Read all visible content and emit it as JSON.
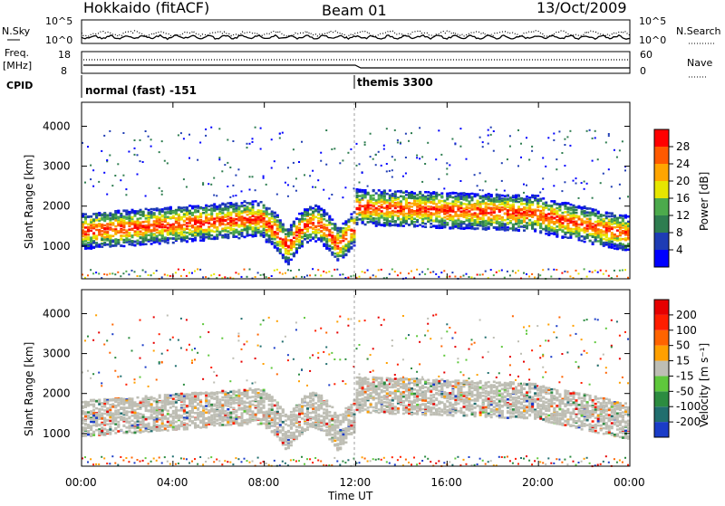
{
  "header": {
    "left_title": "Hokkaido (fitACF)",
    "center_title": "Beam 01",
    "right_title": "13/Oct/2009"
  },
  "top_panels": {
    "nsky_label": "N.Sky",
    "nsearch_label": "N.Search",
    "nsky_ticks": [
      "10^5",
      "10^0"
    ],
    "nsearch_ticks": [
      "10^5",
      "10^0"
    ],
    "freq_label_1": "Freq.",
    "freq_label_2": "[MHz]",
    "freq_ticks": [
      "18",
      "8"
    ],
    "nave_label": "Nave",
    "nave_ticks": [
      "60",
      "0"
    ],
    "cpid_label": "CPID",
    "cpid_segments": [
      "normal (fast) -151",
      "themis 3300"
    ]
  },
  "power_panel": {
    "ylabel": "Slant Range [km]",
    "colorbar_label": "Power [dB]",
    "colorbar_ticks": [
      "28",
      "24",
      "20",
      "16",
      "12",
      "8",
      "4"
    ],
    "colors": [
      "#0000ff",
      "#1e3cb4",
      "#2e7d50",
      "#4caa4c",
      "#e6e600",
      "#ffa500",
      "#ff5a00",
      "#ff0000"
    ]
  },
  "velocity_panel": {
    "ylabel": "Slant Range [km]",
    "colorbar_label": "Velocity [m s⁻¹]",
    "colorbar_ticks": [
      "200",
      "100",
      "50",
      "15",
      "-15",
      "-50",
      "-100",
      "-200"
    ],
    "colors": [
      "#1a3cc8",
      "#206e6e",
      "#2c8c40",
      "#5fc83c",
      "#bebeb4",
      "#ffa000",
      "#ff6400",
      "#ff1e00",
      "#e60000"
    ]
  },
  "x_axis": {
    "label": "Time UT",
    "ticks": [
      "00:00",
      "04:00",
      "08:00",
      "12:00",
      "16:00",
      "20:00",
      "00:00"
    ]
  },
  "chart_data": [
    {
      "type": "line",
      "title": "Hokkaido (fitACF) Beam 01 13/Oct/2009",
      "ylabel": "N.Sky",
      "xlabel": "Time UT",
      "xlim": [
        "00:00",
        "24:00"
      ],
      "y_scale": "log",
      "ylim": [
        1,
        100000
      ]
    },
    {
      "type": "line",
      "ylabel": "Freq. [MHz]",
      "ylim": [
        8,
        18
      ],
      "series": [
        {
          "name": "Freq.",
          "x": [
            "00:00",
            "12:00",
            "12:00",
            "24:00"
          ],
          "values": [
            10.8,
            10.8,
            10.4,
            10.4
          ]
        },
        {
          "name": "Nave",
          "x": [
            "00:00",
            "12:00",
            "24:00"
          ],
          "values": [
            22,
            22,
            22
          ]
        }
      ]
    },
    {
      "type": "heatmap",
      "ylabel": "Slant Range [km]",
      "xlabel": "Time UT",
      "ylim": [
        180,
        4600
      ],
      "yticks": [
        1000,
        2000,
        3000,
        4000
      ],
      "xticks": [
        "00:00",
        "04:00",
        "08:00",
        "12:00",
        "16:00",
        "20:00",
        "24:00"
      ],
      "colorbar": {
        "label": "Power [dB]",
        "min": 0,
        "max": 32,
        "ticks": [
          4,
          8,
          12,
          16,
          20,
          24,
          28
        ]
      }
    },
    {
      "type": "heatmap",
      "ylabel": "Slant Range [km]",
      "xlabel": "Time UT",
      "ylim": [
        180,
        4600
      ],
      "yticks": [
        1000,
        2000,
        3000,
        4000
      ],
      "xticks": [
        "00:00",
        "04:00",
        "08:00",
        "12:00",
        "16:00",
        "20:00",
        "24:00"
      ],
      "colorbar": {
        "label": "Velocity [m s⁻¹]",
        "ticks": [
          200,
          100,
          50,
          15,
          -15,
          -50,
          -100,
          -200
        ]
      }
    }
  ]
}
